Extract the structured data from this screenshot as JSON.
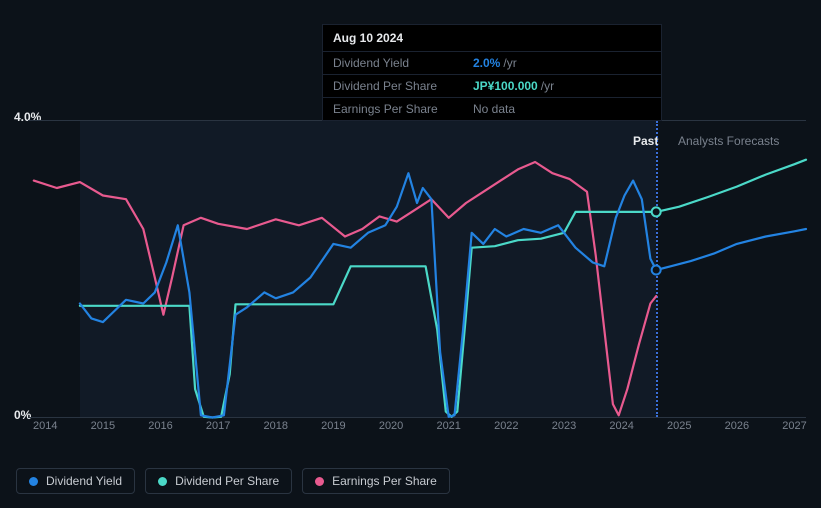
{
  "chart": {
    "type": "line",
    "background_color": "#0c1219",
    "grid_color": "#2a3441",
    "past_shade_color": "rgba(30,50,80,0.25)",
    "cursor_color": "#3a6fd8",
    "yaxis": {
      "min": 0,
      "max": 4.0,
      "ticks": [
        {
          "v": 0,
          "label": "0%"
        },
        {
          "v": 4.0,
          "label": "4.0%"
        }
      ],
      "label_color": "#e8eaed",
      "label_fontsize": 12
    },
    "xaxis": {
      "min": 2013.7,
      "max": 2027.2,
      "ticks": [
        2014,
        2015,
        2016,
        2017,
        2018,
        2019,
        2020,
        2021,
        2022,
        2023,
        2024,
        2025,
        2026,
        2027
      ],
      "label_color": "#7a828e",
      "label_fontsize": 11
    },
    "past_end_x": 2024.6,
    "cursor_x": 2024.6,
    "region_labels": {
      "past": "Past",
      "forecast": "Analysts Forecasts"
    }
  },
  "series": {
    "dividend_yield": {
      "label": "Dividend Yield",
      "color": "#2383e2",
      "width": 2.2,
      "points": [
        [
          2014.6,
          1.55
        ],
        [
          2014.8,
          1.35
        ],
        [
          2015.0,
          1.3
        ],
        [
          2015.2,
          1.45
        ],
        [
          2015.4,
          1.6
        ],
        [
          2015.7,
          1.55
        ],
        [
          2015.9,
          1.7
        ],
        [
          2016.1,
          2.1
        ],
        [
          2016.3,
          2.6
        ],
        [
          2016.5,
          1.7
        ],
        [
          2016.7,
          0.05
        ],
        [
          2016.9,
          0.02
        ],
        [
          2017.1,
          0.05
        ],
        [
          2017.3,
          1.4
        ],
        [
          2017.5,
          1.5
        ],
        [
          2017.8,
          1.7
        ],
        [
          2018.0,
          1.62
        ],
        [
          2018.3,
          1.7
        ],
        [
          2018.6,
          1.9
        ],
        [
          2019.0,
          2.35
        ],
        [
          2019.3,
          2.3
        ],
        [
          2019.6,
          2.5
        ],
        [
          2019.9,
          2.6
        ],
        [
          2020.1,
          2.85
        ],
        [
          2020.3,
          3.3
        ],
        [
          2020.45,
          2.9
        ],
        [
          2020.55,
          3.1
        ],
        [
          2020.7,
          2.95
        ],
        [
          2020.85,
          0.9
        ],
        [
          2021.0,
          0.03
        ],
        [
          2021.1,
          0.05
        ],
        [
          2021.25,
          1.2
        ],
        [
          2021.4,
          2.5
        ],
        [
          2021.6,
          2.35
        ],
        [
          2021.8,
          2.55
        ],
        [
          2022.0,
          2.45
        ],
        [
          2022.3,
          2.55
        ],
        [
          2022.6,
          2.5
        ],
        [
          2022.9,
          2.6
        ],
        [
          2023.2,
          2.3
        ],
        [
          2023.5,
          2.1
        ],
        [
          2023.7,
          2.05
        ],
        [
          2023.9,
          2.7
        ],
        [
          2024.05,
          3.0
        ],
        [
          2024.2,
          3.2
        ],
        [
          2024.35,
          2.95
        ],
        [
          2024.5,
          2.15
        ],
        [
          2024.6,
          2.0
        ]
      ],
      "forecast_points": [
        [
          2024.6,
          2.0
        ],
        [
          2024.85,
          2.05
        ],
        [
          2025.2,
          2.12
        ],
        [
          2025.6,
          2.22
        ],
        [
          2026.0,
          2.35
        ],
        [
          2026.5,
          2.45
        ],
        [
          2027.0,
          2.52
        ],
        [
          2027.2,
          2.55
        ]
      ],
      "marker_x": 2024.6,
      "marker_y": 2.0
    },
    "dividend_per_share": {
      "label": "Dividend Per Share",
      "color": "#4bd9c8",
      "width": 2.2,
      "points": [
        [
          2014.6,
          1.52
        ],
        [
          2015.5,
          1.52
        ],
        [
          2015.9,
          1.52
        ],
        [
          2016.2,
          1.52
        ],
        [
          2016.5,
          1.52
        ],
        [
          2016.6,
          0.4
        ],
        [
          2016.75,
          0.03
        ],
        [
          2016.9,
          0.02
        ],
        [
          2017.05,
          0.03
        ],
        [
          2017.2,
          0.6
        ],
        [
          2017.3,
          1.54
        ],
        [
          2018.0,
          1.54
        ],
        [
          2018.5,
          1.54
        ],
        [
          2019.0,
          1.54
        ],
        [
          2019.3,
          2.05
        ],
        [
          2019.5,
          2.05
        ],
        [
          2020.0,
          2.05
        ],
        [
          2020.6,
          2.05
        ],
        [
          2020.8,
          1.2
        ],
        [
          2020.95,
          0.1
        ],
        [
          2021.05,
          0.03
        ],
        [
          2021.15,
          0.1
        ],
        [
          2021.3,
          1.4
        ],
        [
          2021.4,
          2.3
        ],
        [
          2021.8,
          2.32
        ],
        [
          2022.2,
          2.4
        ],
        [
          2022.6,
          2.42
        ],
        [
          2023.0,
          2.5
        ],
        [
          2023.2,
          2.78
        ],
        [
          2023.5,
          2.78
        ],
        [
          2024.0,
          2.78
        ],
        [
          2024.6,
          2.78
        ]
      ],
      "forecast_points": [
        [
          2024.6,
          2.78
        ],
        [
          2025.0,
          2.85
        ],
        [
          2025.5,
          2.98
        ],
        [
          2026.0,
          3.12
        ],
        [
          2026.5,
          3.28
        ],
        [
          2027.0,
          3.42
        ],
        [
          2027.2,
          3.48
        ]
      ],
      "marker_x": 2024.6,
      "marker_y": 2.78
    },
    "earnings_per_share": {
      "label": "Earnings Per Share",
      "color": "#e85a8f",
      "width": 2.2,
      "points": [
        [
          2013.8,
          3.2
        ],
        [
          2014.2,
          3.1
        ],
        [
          2014.6,
          3.18
        ],
        [
          2015.0,
          3.0
        ],
        [
          2015.4,
          2.95
        ],
        [
          2015.7,
          2.55
        ],
        [
          2015.9,
          1.9
        ],
        [
          2016.05,
          1.4
        ],
        [
          2016.2,
          1.9
        ],
        [
          2016.4,
          2.6
        ],
        [
          2016.7,
          2.7
        ],
        [
          2017.0,
          2.62
        ],
        [
          2017.5,
          2.55
        ],
        [
          2018.0,
          2.68
        ],
        [
          2018.4,
          2.6
        ],
        [
          2018.8,
          2.7
        ],
        [
          2019.2,
          2.45
        ],
        [
          2019.5,
          2.55
        ],
        [
          2019.8,
          2.72
        ],
        [
          2020.1,
          2.65
        ],
        [
          2020.4,
          2.8
        ],
        [
          2020.7,
          2.95
        ],
        [
          2021.0,
          2.7
        ],
        [
          2021.3,
          2.9
        ],
        [
          2021.6,
          3.05
        ],
        [
          2021.9,
          3.2
        ],
        [
          2022.2,
          3.35
        ],
        [
          2022.5,
          3.45
        ],
        [
          2022.8,
          3.3
        ],
        [
          2023.1,
          3.22
        ],
        [
          2023.4,
          3.05
        ],
        [
          2023.55,
          2.2
        ],
        [
          2023.7,
          1.2
        ],
        [
          2023.85,
          0.2
        ],
        [
          2023.95,
          0.05
        ],
        [
          2024.1,
          0.4
        ],
        [
          2024.3,
          1.0
        ],
        [
          2024.5,
          1.55
        ],
        [
          2024.6,
          1.65
        ]
      ]
    }
  },
  "tooltip": {
    "title": "Aug 10 2024",
    "rows": [
      {
        "label": "Dividend Yield",
        "value": "2.0%",
        "suffix": "/yr",
        "value_color": "#2383e2"
      },
      {
        "label": "Dividend Per Share",
        "value": "JP¥100.000",
        "suffix": "/yr",
        "value_color": "#4bd9c8"
      },
      {
        "label": "Earnings Per Share",
        "nodata": "No data"
      }
    ]
  },
  "legend": [
    {
      "key": "dividend_yield",
      "label": "Dividend Yield",
      "color": "#2383e2"
    },
    {
      "key": "dividend_per_share",
      "label": "Dividend Per Share",
      "color": "#4bd9c8"
    },
    {
      "key": "earnings_per_share",
      "label": "Earnings Per Share",
      "color": "#e85a8f"
    }
  ]
}
